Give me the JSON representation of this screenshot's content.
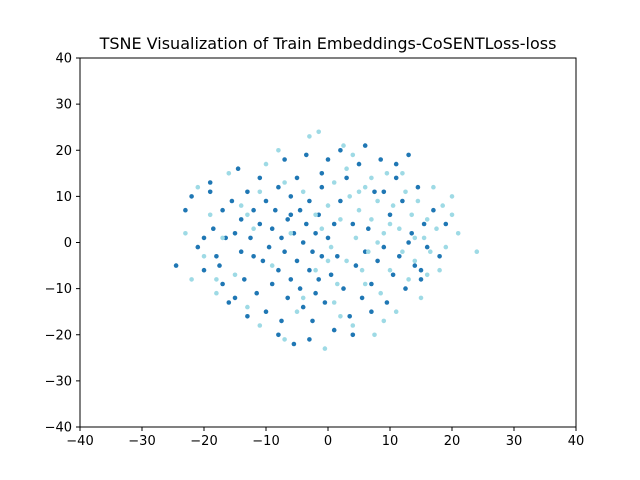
{
  "chart_data": {
    "type": "scatter",
    "title": "TSNE Visualization of Train Embeddings-CoSENTLoss-loss",
    "xlabel": "",
    "ylabel": "",
    "xlim": [
      -40,
      40
    ],
    "ylim": [
      -40,
      40
    ],
    "xticks": [
      -40,
      -30,
      -20,
      -10,
      0,
      10,
      20,
      30,
      40
    ],
    "yticks": [
      -40,
      -30,
      -20,
      -10,
      0,
      10,
      20,
      30,
      40
    ],
    "grid": false,
    "legend": "none",
    "series": [
      {
        "color": "#1f77b4",
        "points": [
          [
            -24.5,
            -5
          ],
          [
            -23,
            7
          ],
          [
            -22,
            10
          ],
          [
            -21,
            -1
          ],
          [
            -20,
            -6
          ],
          [
            -19,
            11
          ],
          [
            -19,
            13
          ],
          [
            -18.5,
            3
          ],
          [
            -18,
            -3
          ],
          [
            -17.5,
            -5
          ],
          [
            -17,
            7
          ],
          [
            -16.5,
            1
          ],
          [
            -16,
            -13
          ],
          [
            -15.5,
            9
          ],
          [
            -15,
            2
          ],
          [
            -15,
            -12
          ],
          [
            -14.5,
            16
          ],
          [
            -14,
            -2
          ],
          [
            -14,
            5
          ],
          [
            -13.5,
            -8
          ],
          [
            -13,
            11
          ],
          [
            -13,
            -16
          ],
          [
            -12.5,
            1
          ],
          [
            -12,
            7
          ],
          [
            -11.5,
            -11
          ],
          [
            -11,
            4
          ],
          [
            -11,
            14
          ],
          [
            -10.5,
            -4
          ],
          [
            -10,
            9
          ],
          [
            -10,
            -15
          ],
          [
            -9.5,
            -1
          ],
          [
            -9,
            3
          ],
          [
            -9,
            -9
          ],
          [
            -8.5,
            7
          ],
          [
            -8,
            -6
          ],
          [
            -8,
            12
          ],
          [
            -7.5,
            1
          ],
          [
            -7.5,
            -17
          ],
          [
            -7,
            -2
          ],
          [
            -7,
            18
          ],
          [
            -6.5,
            5
          ],
          [
            -6.5,
            -12
          ],
          [
            -6,
            -8
          ],
          [
            -6,
            10
          ],
          [
            -5.5,
            2
          ],
          [
            -5.5,
            -22
          ],
          [
            -5,
            -4
          ],
          [
            -5,
            14
          ],
          [
            -4.5,
            7
          ],
          [
            -4.5,
            -10
          ],
          [
            -4,
            0
          ],
          [
            -4,
            -14
          ],
          [
            -3.5,
            4
          ],
          [
            -3.5,
            19
          ],
          [
            -3,
            -6
          ],
          [
            -3,
            9
          ],
          [
            -2.5,
            -2
          ],
          [
            -2.5,
            -17
          ],
          [
            -2,
            2
          ],
          [
            -2,
            -11
          ],
          [
            -1.5,
            6
          ],
          [
            -1.5,
            -8
          ],
          [
            -1,
            -3
          ],
          [
            -1,
            12
          ],
          [
            -0.5,
            -13
          ],
          [
            0,
            1
          ],
          [
            0,
            18
          ],
          [
            0.5,
            -7
          ],
          [
            1,
            4
          ],
          [
            1,
            -19
          ],
          [
            1.5,
            -3
          ],
          [
            2,
            9
          ],
          [
            2.5,
            -10
          ],
          [
            3,
            14
          ],
          [
            3.5,
            -16
          ],
          [
            4,
            4
          ],
          [
            4.5,
            -5
          ],
          [
            5,
            17
          ],
          [
            5.5,
            -12
          ],
          [
            6,
            21
          ],
          [
            6.5,
            3
          ],
          [
            7,
            -9
          ],
          [
            7.5,
            11
          ],
          [
            8,
            -4
          ],
          [
            8.5,
            18
          ],
          [
            9,
            -1
          ],
          [
            9.5,
            -13
          ],
          [
            10,
            6
          ],
          [
            10.5,
            -7
          ],
          [
            11,
            14
          ],
          [
            11.5,
            -3
          ],
          [
            12,
            9
          ],
          [
            12.5,
            -10
          ],
          [
            13,
            19
          ],
          [
            13.5,
            2
          ],
          [
            14,
            -5
          ],
          [
            14.5,
            12
          ],
          [
            15,
            -8
          ],
          [
            15.5,
            4
          ],
          [
            16,
            -1
          ],
          [
            17,
            7
          ],
          [
            18,
            -3
          ],
          [
            19,
            4
          ],
          [
            -20,
            1
          ],
          [
            -12,
            -3
          ],
          [
            -8,
            -20
          ],
          [
            -3,
            -21
          ],
          [
            2,
            20
          ],
          [
            7,
            -15
          ],
          [
            11,
            17
          ],
          [
            15,
            -6
          ],
          [
            -17,
            -9
          ],
          [
            -6,
            6
          ],
          [
            4,
            -20
          ],
          [
            9,
            11
          ],
          [
            -1,
            15
          ],
          [
            6,
            -2
          ],
          [
            13,
            0
          ]
        ]
      },
      {
        "color": "#9edae5",
        "points": [
          [
            -23,
            2
          ],
          [
            -22,
            -8
          ],
          [
            -21,
            12
          ],
          [
            -20,
            -3
          ],
          [
            -19,
            6
          ],
          [
            -18,
            -11
          ],
          [
            -17,
            1
          ],
          [
            -16,
            15
          ],
          [
            -15,
            -7
          ],
          [
            -14,
            8
          ],
          [
            -13,
            -14
          ],
          [
            -12,
            3
          ],
          [
            -11,
            -18
          ],
          [
            -10,
            17
          ],
          [
            -9,
            -5
          ],
          [
            -8,
            20
          ],
          [
            -7,
            -21
          ],
          [
            -6,
            2
          ],
          [
            -5,
            -15
          ],
          [
            -4,
            11
          ],
          [
            -3,
            23
          ],
          [
            -2,
            -6
          ],
          [
            -1.5,
            24
          ],
          [
            -1,
            3
          ],
          [
            -0.5,
            -23
          ],
          [
            0,
            8
          ],
          [
            0.5,
            -1
          ],
          [
            1,
            13
          ],
          [
            1.5,
            -9
          ],
          [
            2,
            5
          ],
          [
            2.5,
            21
          ],
          [
            3,
            -4
          ],
          [
            3.5,
            10
          ],
          [
            4,
            -18
          ],
          [
            4.5,
            1
          ],
          [
            5,
            7
          ],
          [
            5.5,
            -6
          ],
          [
            6,
            12
          ],
          [
            6.5,
            -2
          ],
          [
            7,
            5
          ],
          [
            7.5,
            -20
          ],
          [
            8,
            9
          ],
          [
            8.5,
            -11
          ],
          [
            9,
            2
          ],
          [
            9.5,
            15
          ],
          [
            10,
            -6
          ],
          [
            10.5,
            8
          ],
          [
            11,
            -15
          ],
          [
            11.5,
            3
          ],
          [
            12,
            -2
          ],
          [
            12.5,
            11
          ],
          [
            13,
            -8
          ],
          [
            13.5,
            6
          ],
          [
            14,
            -4
          ],
          [
            14.5,
            9
          ],
          [
            15,
            -12
          ],
          [
            15.5,
            1
          ],
          [
            16,
            5
          ],
          [
            16.5,
            -2
          ],
          [
            17,
            12
          ],
          [
            17.5,
            3
          ],
          [
            18,
            -6
          ],
          [
            18.5,
            8
          ],
          [
            19,
            -1
          ],
          [
            20,
            6
          ],
          [
            20,
            10
          ],
          [
            21,
            2
          ],
          [
            24,
            -2
          ],
          [
            -18,
            -8
          ],
          [
            -11,
            11
          ],
          [
            -4,
            -12
          ],
          [
            3,
            16
          ],
          [
            8,
            0
          ],
          [
            12,
            15
          ],
          [
            1,
            -13
          ],
          [
            6,
            -9
          ],
          [
            -2,
            6
          ],
          [
            4,
            19
          ],
          [
            9,
            -17
          ],
          [
            14,
            1
          ],
          [
            -7,
            13
          ],
          [
            0,
            -4
          ],
          [
            5,
            11
          ],
          [
            10,
            4
          ],
          [
            16,
            -7
          ],
          [
            -13,
            6
          ],
          [
            2,
            -16
          ],
          [
            7,
            14
          ]
        ]
      }
    ]
  }
}
